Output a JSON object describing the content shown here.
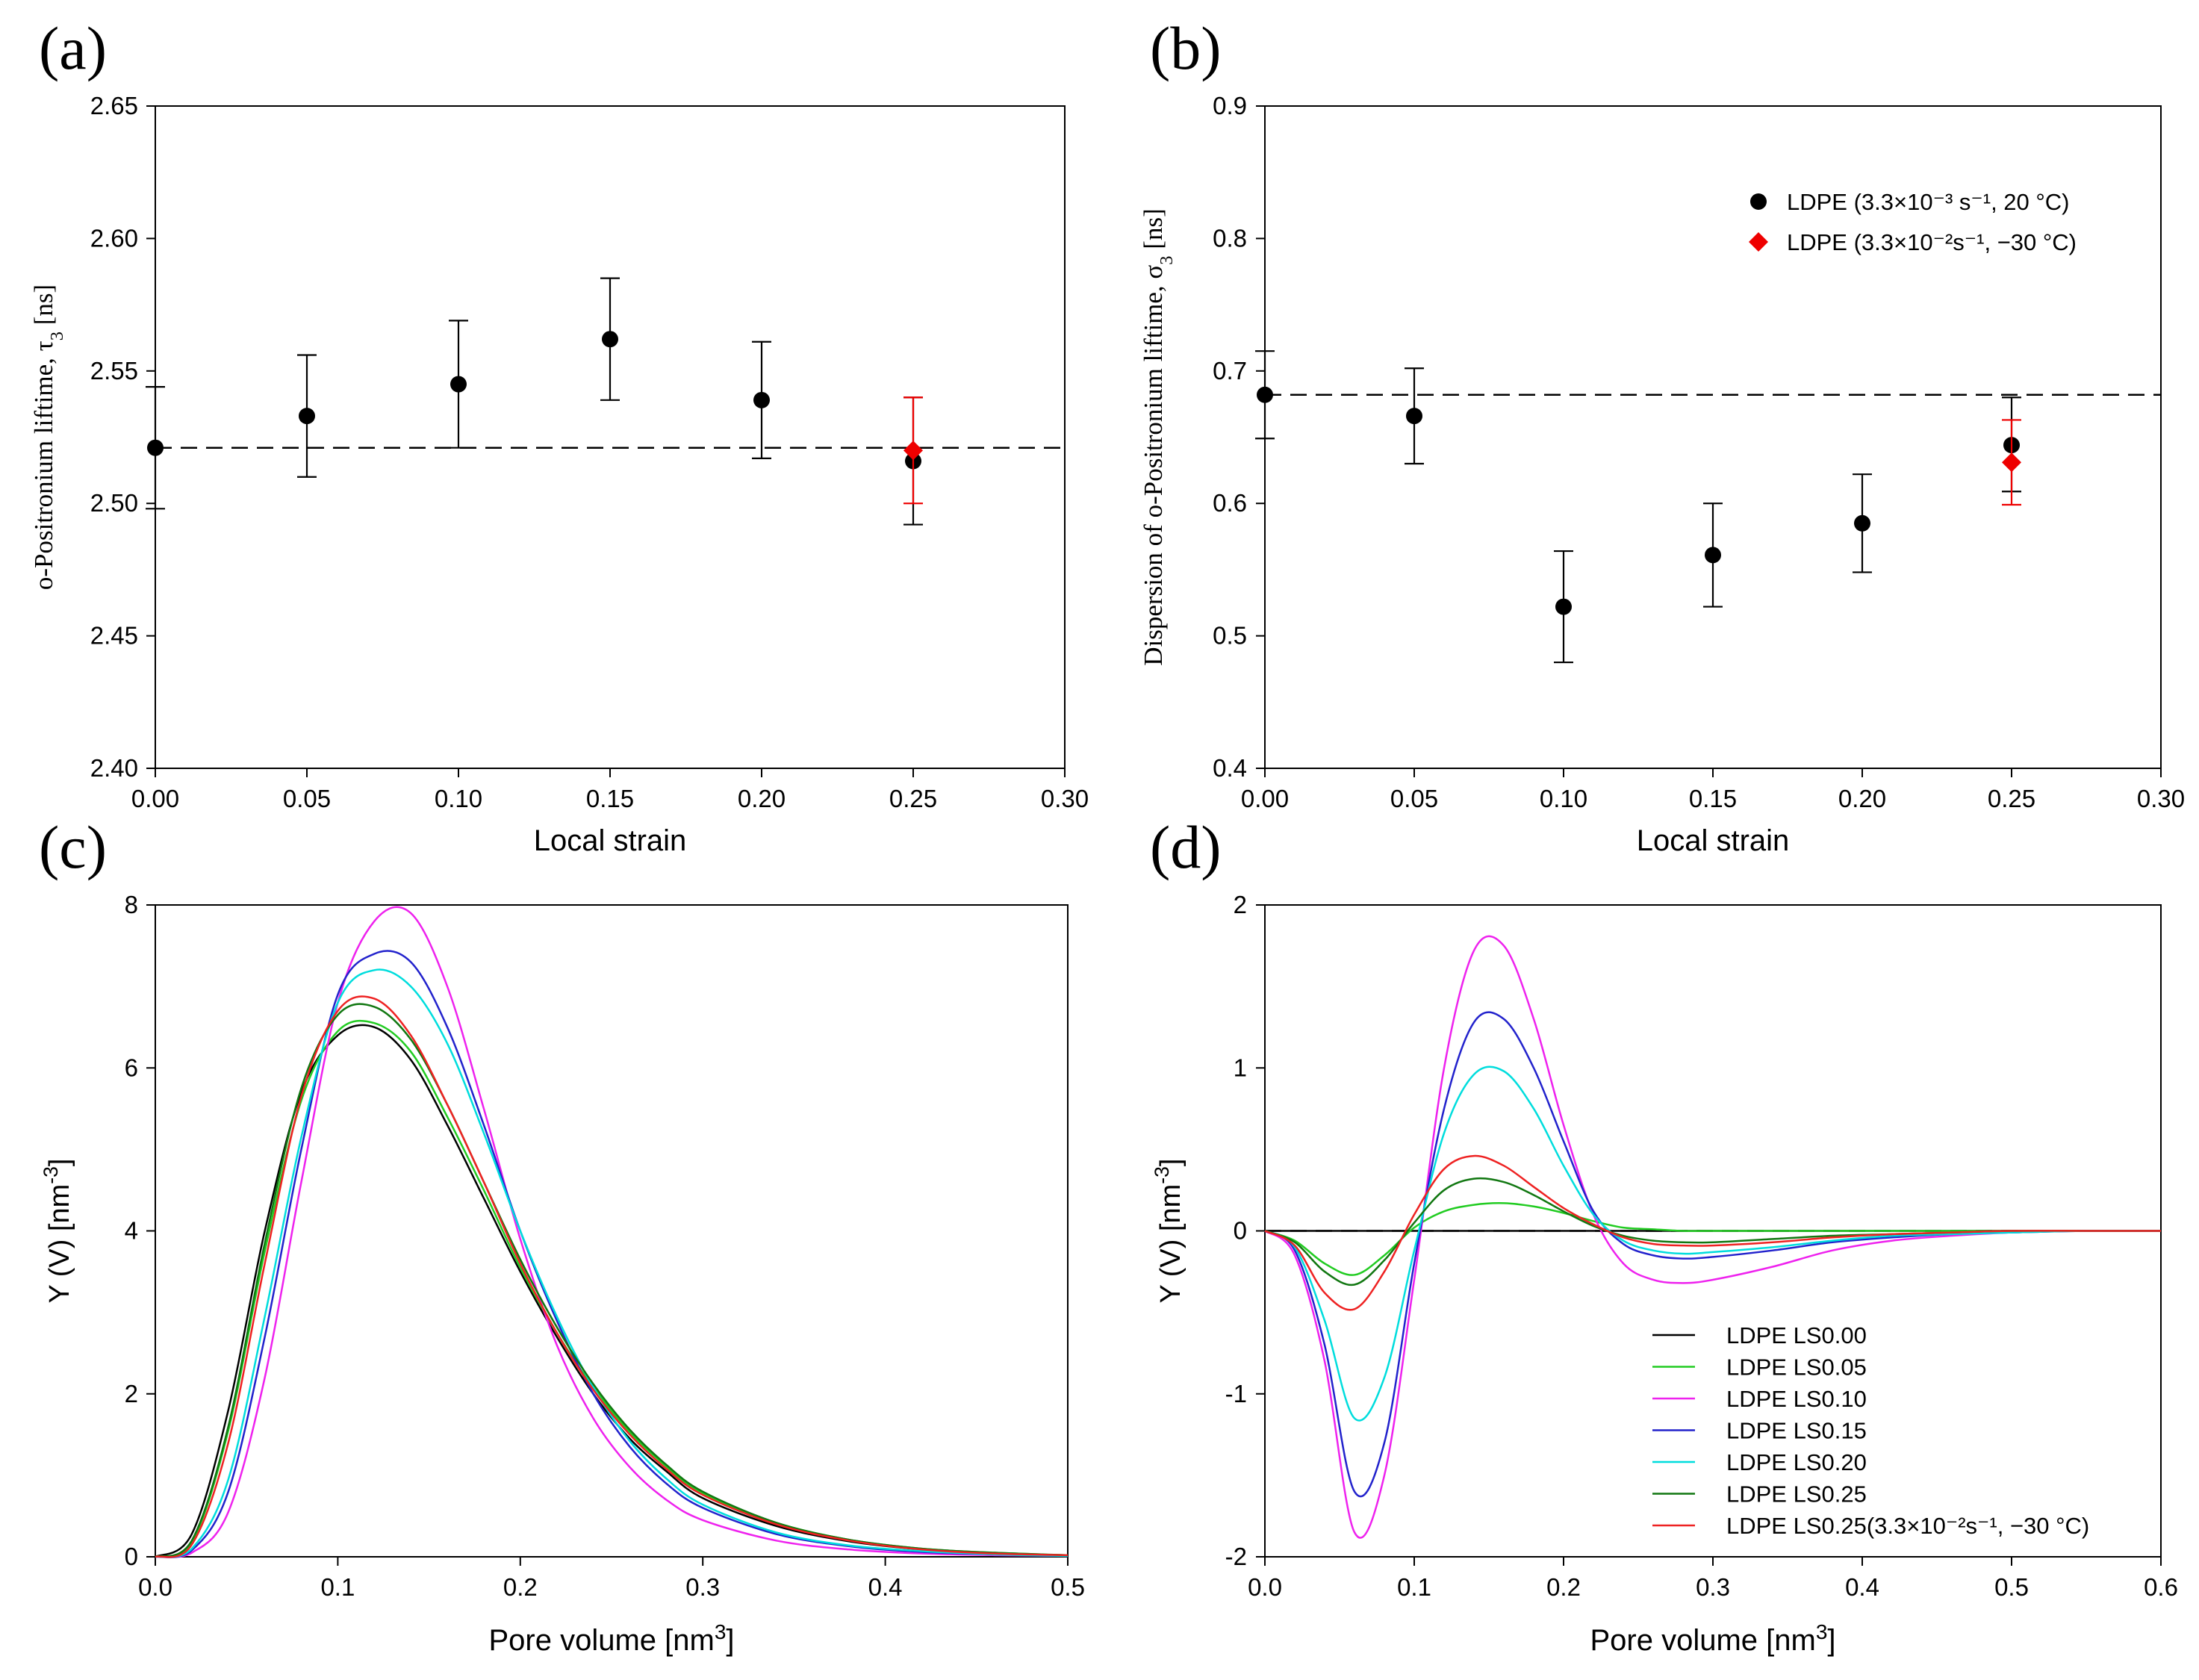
{
  "panels": {
    "a": {
      "letter": "(a)"
    },
    "b": {
      "letter": "(b)"
    },
    "c": {
      "letter": "(c)"
    },
    "d": {
      "letter": "(d)"
    }
  },
  "chart_data": [
    {
      "id": "a",
      "type": "scatter",
      "title": "",
      "xlabel": "Local strain",
      "ylabel": "o-Positronium liftime, τ3 [ns]",
      "xlim": [
        0,
        0.3
      ],
      "ylim": [
        2.4,
        2.65
      ],
      "xticks": [
        0.0,
        0.05,
        0.1,
        0.15,
        0.2,
        0.25,
        0.3
      ],
      "yticks": [
        2.4,
        2.45,
        2.5,
        2.55,
        2.6,
        2.65
      ],
      "xtick_labels": [
        "0.00",
        "0.05",
        "0.10",
        "0.15",
        "0.20",
        "0.25",
        "0.30"
      ],
      "ytick_labels": [
        "2.40",
        "2.45",
        "2.50",
        "2.55",
        "2.60",
        "2.65"
      ],
      "reference_line": {
        "y": 2.521,
        "style": "dashed"
      },
      "series": [
        {
          "name": "LDPE (3.3×10⁻³ s⁻¹, 20 °C)",
          "color": "#000000",
          "marker": "circle",
          "x": [
            0.0,
            0.05,
            0.1,
            0.15,
            0.2,
            0.25
          ],
          "y": [
            2.521,
            2.533,
            2.545,
            2.562,
            2.539,
            2.516
          ],
          "err_low": [
            2.498,
            2.51,
            2.521,
            2.539,
            2.517,
            2.492
          ],
          "err_high": [
            2.544,
            2.556,
            2.569,
            2.585,
            2.561,
            2.54
          ]
        },
        {
          "name": "LDPE (3.3×10⁻²s⁻¹, −30 °C)",
          "color": "#ee0000",
          "marker": "diamond",
          "x": [
            0.25
          ],
          "y": [
            2.52
          ],
          "err_low": [
            2.5
          ],
          "err_high": [
            2.54
          ]
        }
      ]
    },
    {
      "id": "b",
      "type": "scatter",
      "title": "",
      "xlabel": "Local strain",
      "ylabel": "Dispersion of o-Positronium liftime, σ3 [ns]",
      "xlim": [
        0,
        0.3
      ],
      "ylim": [
        0.4,
        0.9
      ],
      "xticks": [
        0.0,
        0.05,
        0.1,
        0.15,
        0.2,
        0.25,
        0.3
      ],
      "yticks": [
        0.4,
        0.5,
        0.6,
        0.7,
        0.8,
        0.9
      ],
      "xtick_labels": [
        "0.00",
        "0.05",
        "0.10",
        "0.15",
        "0.20",
        "0.25",
        "0.30"
      ],
      "ytick_labels": [
        "0.4",
        "0.5",
        "0.6",
        "0.7",
        "0.8",
        "0.9"
      ],
      "reference_line": {
        "y": 0.682,
        "style": "dashed"
      },
      "legend_position": "top-right",
      "series": [
        {
          "name": "LDPE (3.3×10⁻³ s⁻¹, 20 °C)",
          "color": "#000000",
          "marker": "circle",
          "x": [
            0.0,
            0.05,
            0.1,
            0.15,
            0.2,
            0.25
          ],
          "y": [
            0.682,
            0.666,
            0.522,
            0.561,
            0.585,
            0.644
          ],
          "err_low": [
            0.649,
            0.63,
            0.48,
            0.522,
            0.548,
            0.609
          ],
          "err_high": [
            0.715,
            0.702,
            0.564,
            0.6,
            0.622,
            0.68
          ]
        },
        {
          "name": "LDPE (3.3×10⁻²s⁻¹, −30 °C)",
          "color": "#ee0000",
          "marker": "diamond",
          "x": [
            0.25
          ],
          "y": [
            0.631
          ],
          "err_low": [
            0.599
          ],
          "err_high": [
            0.663
          ]
        }
      ]
    },
    {
      "id": "c",
      "type": "line",
      "title": "",
      "xlabel": "Pore volume [nm3]",
      "ylabel": "Y (V) [nm-3]",
      "xlim": [
        0,
        0.5
      ],
      "ylim": [
        0,
        8
      ],
      "xticks": [
        0.0,
        0.1,
        0.2,
        0.3,
        0.4,
        0.5
      ],
      "yticks": [
        0,
        2,
        4,
        6,
        8
      ],
      "xtick_labels": [
        "0.0",
        "0.1",
        "0.2",
        "0.3",
        "0.4",
        "0.5"
      ],
      "ytick_labels": [
        "0",
        "2",
        "4",
        "6",
        "8"
      ],
      "x": [
        0.0,
        0.02,
        0.04,
        0.06,
        0.08,
        0.1,
        0.12,
        0.14,
        0.16,
        0.18,
        0.2,
        0.22,
        0.24,
        0.26,
        0.28,
        0.3,
        0.34,
        0.38,
        0.42,
        0.46,
        0.5
      ],
      "series": [
        {
          "name": "LDPE LS0.00",
          "color": "#000000",
          "values": [
            0,
            0.28,
            1.8,
            4.0,
            5.7,
            6.4,
            6.5,
            6.1,
            5.3,
            4.4,
            3.5,
            2.7,
            2.0,
            1.45,
            1.05,
            0.72,
            0.38,
            0.19,
            0.09,
            0.04,
            0.02
          ]
        },
        {
          "name": "LDPE LS0.05",
          "color": "#22cc22",
          "values": [
            0,
            0.18,
            1.55,
            3.75,
            5.6,
            6.45,
            6.55,
            6.2,
            5.4,
            4.5,
            3.55,
            2.75,
            2.08,
            1.53,
            1.11,
            0.78,
            0.42,
            0.21,
            0.1,
            0.05,
            0.02
          ]
        },
        {
          "name": "LDPE LS0.10",
          "color": "#ee22ee",
          "values": [
            0,
            0.05,
            0.55,
            2.2,
            4.6,
            6.8,
            7.8,
            7.9,
            7.0,
            5.5,
            3.9,
            2.6,
            1.7,
            1.1,
            0.7,
            0.45,
            0.2,
            0.09,
            0.04,
            0.02,
            0.01
          ]
        },
        {
          "name": "LDPE LS0.15",
          "color": "#2222cc",
          "values": [
            0,
            0.08,
            0.8,
            2.7,
            5.0,
            6.9,
            7.4,
            7.3,
            6.5,
            5.3,
            4.0,
            2.9,
            2.0,
            1.35,
            0.9,
            0.6,
            0.28,
            0.13,
            0.06,
            0.03,
            0.01
          ]
        },
        {
          "name": "LDPE LS0.20",
          "color": "#00dddd",
          "values": [
            0,
            0.1,
            0.95,
            2.95,
            5.15,
            6.8,
            7.2,
            7.0,
            6.3,
            5.2,
            4.0,
            2.95,
            2.08,
            1.42,
            0.96,
            0.64,
            0.3,
            0.14,
            0.07,
            0.03,
            0.01
          ]
        },
        {
          "name": "LDPE LS0.25",
          "color": "#117711",
          "values": [
            0,
            0.2,
            1.6,
            3.85,
            5.75,
            6.65,
            6.75,
            6.35,
            5.55,
            4.6,
            3.65,
            2.82,
            2.12,
            1.56,
            1.13,
            0.8,
            0.42,
            0.21,
            0.1,
            0.05,
            0.02
          ]
        },
        {
          "name": "LDPE LS0.25(3.3×10⁻²s⁻¹, −30 °C)",
          "color": "#ee2222",
          "values": [
            0,
            0.15,
            1.4,
            3.6,
            5.65,
            6.7,
            6.85,
            6.4,
            5.55,
            4.6,
            3.6,
            2.75,
            2.05,
            1.5,
            1.08,
            0.76,
            0.4,
            0.2,
            0.09,
            0.04,
            0.02
          ]
        }
      ]
    },
    {
      "id": "d",
      "type": "line",
      "title": "",
      "xlabel": "Pore volume [nm3]",
      "ylabel": "Y (V) [nm-3]",
      "xlim": [
        0,
        0.6
      ],
      "ylim": [
        -2,
        2
      ],
      "xticks": [
        0.0,
        0.1,
        0.2,
        0.3,
        0.4,
        0.5,
        0.6
      ],
      "yticks": [
        -2,
        -1,
        0,
        1,
        2
      ],
      "xtick_labels": [
        "0.0",
        "0.1",
        "0.2",
        "0.3",
        "0.4",
        "0.5",
        "0.6"
      ],
      "ytick_labels": [
        "-2",
        "-1",
        "0",
        "1",
        "2"
      ],
      "reference_line": {
        "y": 0,
        "style": "dashed"
      },
      "legend_position": "bottom-right",
      "x": [
        0.0,
        0.02,
        0.04,
        0.06,
        0.08,
        0.1,
        0.12,
        0.14,
        0.16,
        0.18,
        0.2,
        0.22,
        0.24,
        0.26,
        0.28,
        0.3,
        0.34,
        0.38,
        0.42,
        0.46,
        0.5,
        0.55,
        0.6
      ],
      "series": [
        {
          "name": "LDPE LS0.00",
          "color": "#000000",
          "values": [
            0,
            0,
            0,
            0,
            0,
            0,
            0,
            0,
            0,
            0,
            0,
            0,
            0,
            0,
            0,
            0,
            0,
            0,
            0,
            0,
            0,
            0,
            0
          ]
        },
        {
          "name": "LDPE LS0.05",
          "color": "#22cc22",
          "values": [
            0,
            -0.06,
            -0.2,
            -0.27,
            -0.15,
            0.02,
            0.12,
            0.16,
            0.17,
            0.15,
            0.11,
            0.06,
            0.02,
            0.01,
            0.0,
            0.0,
            0.0,
            0.0,
            0.0,
            0.0,
            0.0,
            0.0,
            0.0
          ]
        },
        {
          "name": "LDPE LS0.10",
          "color": "#ee22ee",
          "values": [
            0,
            -0.15,
            -0.8,
            -1.85,
            -1.5,
            -0.3,
            1.0,
            1.72,
            1.75,
            1.3,
            0.65,
            0.1,
            -0.2,
            -0.3,
            -0.32,
            -0.3,
            -0.22,
            -0.12,
            -0.06,
            -0.03,
            -0.01,
            0.0,
            0.0
          ]
        },
        {
          "name": "LDPE LS0.15",
          "color": "#2222cc",
          "values": [
            0,
            -0.12,
            -0.7,
            -1.6,
            -1.3,
            -0.2,
            0.75,
            1.28,
            1.3,
            1.0,
            0.55,
            0.12,
            -0.08,
            -0.15,
            -0.17,
            -0.16,
            -0.12,
            -0.07,
            -0.04,
            -0.02,
            -0.01,
            0.0,
            0.0
          ]
        },
        {
          "name": "LDPE LS0.20",
          "color": "#00dddd",
          "values": [
            0,
            -0.1,
            -0.55,
            -1.15,
            -0.9,
            -0.12,
            0.6,
            0.96,
            0.98,
            0.75,
            0.4,
            0.1,
            -0.06,
            -0.12,
            -0.14,
            -0.13,
            -0.1,
            -0.06,
            -0.03,
            -0.02,
            -0.01,
            0.0,
            0.0
          ]
        },
        {
          "name": "LDPE LS0.25",
          "color": "#117711",
          "values": [
            0,
            -0.07,
            -0.25,
            -0.33,
            -0.18,
            0.05,
            0.25,
            0.32,
            0.3,
            0.22,
            0.12,
            0.03,
            -0.03,
            -0.06,
            -0.07,
            -0.07,
            -0.05,
            -0.03,
            -0.02,
            -0.01,
            0.0,
            0.0,
            0.0
          ]
        },
        {
          "name": "LDPE LS0.25(3.3×10⁻²s⁻¹, −30 °C)",
          "color": "#ee2222",
          "values": [
            0,
            -0.09,
            -0.38,
            -0.48,
            -0.25,
            0.1,
            0.38,
            0.46,
            0.4,
            0.27,
            0.14,
            0.04,
            -0.04,
            -0.08,
            -0.09,
            -0.09,
            -0.07,
            -0.04,
            -0.02,
            -0.01,
            0.0,
            0.0,
            0.0
          ]
        }
      ]
    }
  ]
}
